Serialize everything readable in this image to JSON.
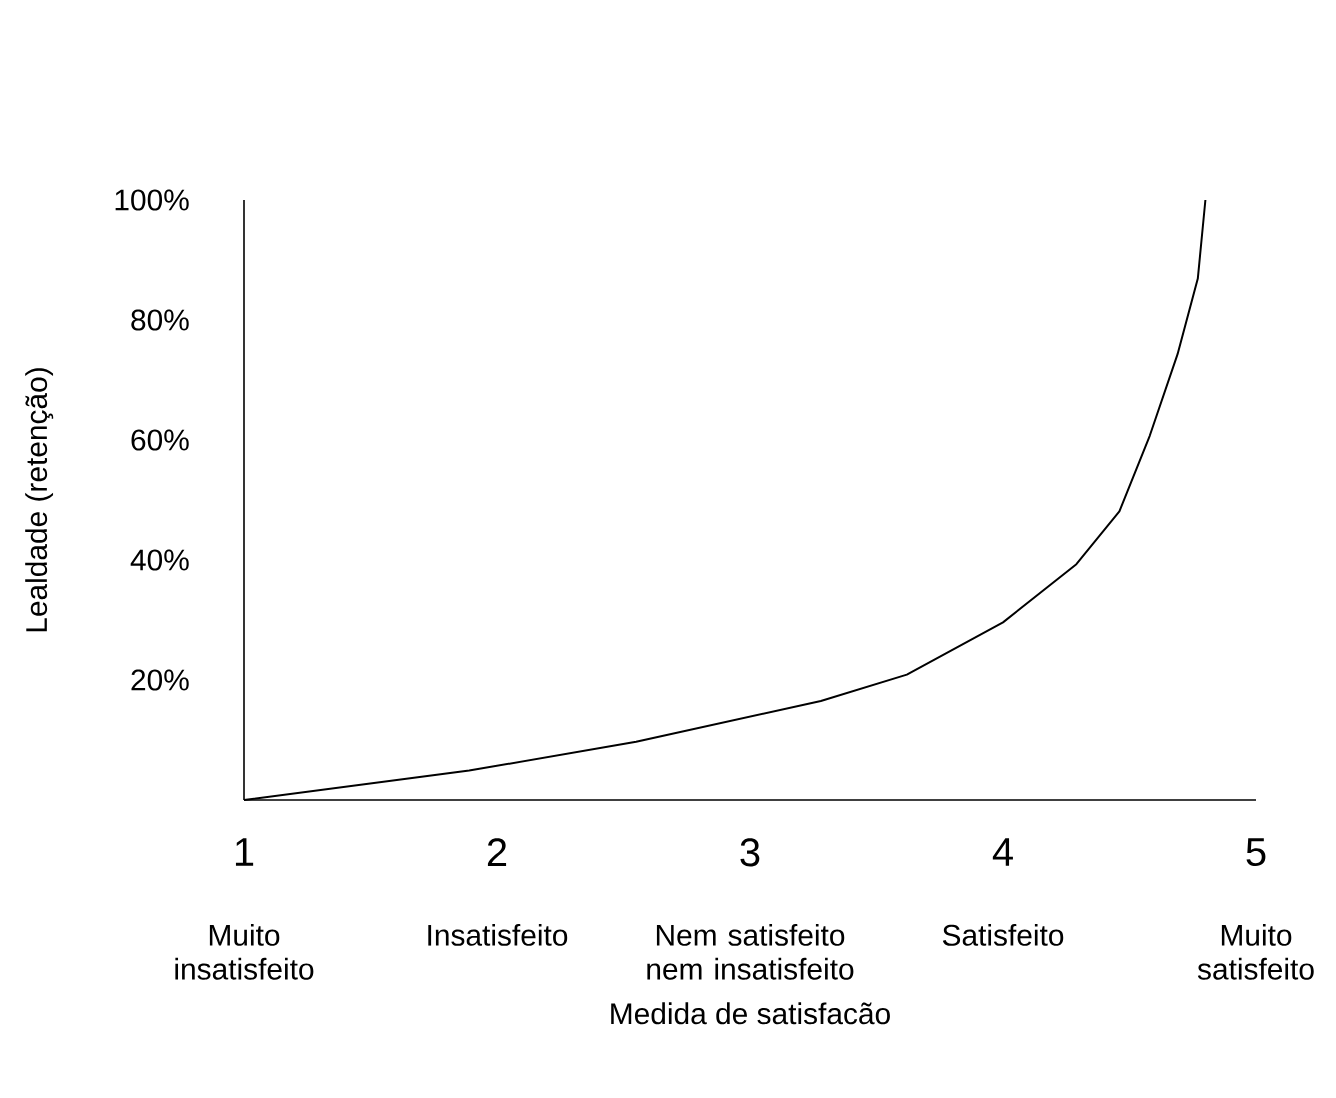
{
  "chart_data": {
    "type": "line",
    "xlabel": "Medida de satisfacão",
    "ylabel": "Lealdade (retenção)",
    "x": [
      1,
      1.89,
      2.55,
      3.28,
      3.62,
      4.0,
      4.29,
      4.46,
      4.58,
      4.69,
      4.77,
      4.8
    ],
    "values": [
      0,
      4.9,
      9.7,
      16.5,
      20.9,
      29.6,
      39.3,
      48.1,
      60.7,
      74.3,
      86.9,
      100
    ],
    "color": "#000000",
    "line_style": "solid",
    "marker": "none",
    "xlim": [
      1,
      5
    ],
    "xticks": [
      1,
      2,
      3,
      4,
      5
    ],
    "ylim": [
      0,
      100
    ],
    "yticks": [
      {
        "value": 20,
        "label": "20%"
      },
      {
        "value": 40,
        "label": "40%"
      },
      {
        "value": 60,
        "label": "60%"
      },
      {
        "value": 80,
        "label": "80%"
      },
      {
        "value": 100,
        "label": "100%"
      }
    ],
    "annotations": [
      "Muito\ninsatisfeito",
      "Insatisfeito",
      "Nem satisfeito\nnem insatisfeito",
      "Satisfeito",
      "Muito\nsatisfeito"
    ]
  }
}
